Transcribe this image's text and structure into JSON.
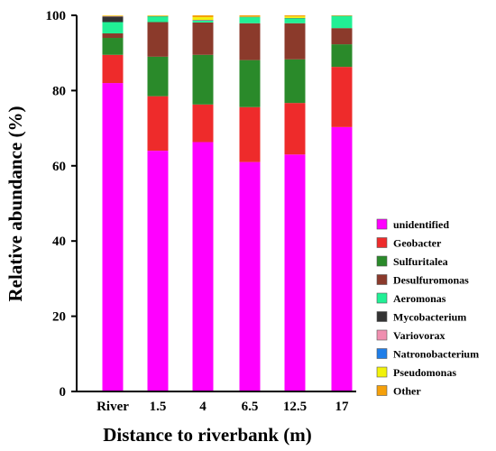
{
  "chart_data": {
    "type": "bar",
    "stacked": true,
    "title": "",
    "xlabel": "Distance to riverbank (m)",
    "ylabel": "Relative abundance (%)",
    "ylim": [
      0,
      100
    ],
    "yticks": [
      0,
      20,
      40,
      60,
      80,
      100
    ],
    "categories": [
      "River",
      "1.5",
      "4",
      "6.5",
      "12.5",
      "17"
    ],
    "legend_position": "right",
    "series": [
      {
        "name": "unidentified",
        "color": "#ff00ff",
        "values": [
          82.0,
          64.0,
          66.3,
          61.0,
          63.0,
          70.3
        ]
      },
      {
        "name": "Geobacter",
        "color": "#ee2b2b",
        "values": [
          7.5,
          14.5,
          10.0,
          14.6,
          13.7,
          16.0
        ]
      },
      {
        "name": "Sulfuritalea",
        "color": "#2a8a2a",
        "values": [
          4.5,
          10.5,
          13.2,
          12.5,
          11.6,
          6.0
        ]
      },
      {
        "name": "Desulfuromonas",
        "color": "#8b3a2b",
        "values": [
          1.2,
          9.2,
          8.6,
          9.8,
          9.6,
          4.3
        ]
      },
      {
        "name": "Aeromonas",
        "color": "#21f095",
        "values": [
          3.0,
          1.5,
          0.5,
          1.6,
          1.3,
          3.2
        ]
      },
      {
        "name": "Mycobacterium",
        "color": "#333333",
        "values": [
          1.5,
          0.1,
          0.1,
          0.1,
          0.1,
          0.1
        ]
      },
      {
        "name": "Variovorax",
        "color": "#f08fb0",
        "values": [
          0.1,
          0.0,
          0.1,
          0.0,
          0.0,
          0.0
        ]
      },
      {
        "name": "Natronobacterium",
        "color": "#1f7ee8",
        "values": [
          0.0,
          0.0,
          0.0,
          0.0,
          0.0,
          0.0
        ]
      },
      {
        "name": "Pseudomonas",
        "color": "#f2f20a",
        "values": [
          0.1,
          0.1,
          0.7,
          0.1,
          0.4,
          0.1
        ]
      },
      {
        "name": "Other",
        "color": "#f5a00a",
        "values": [
          0.1,
          0.1,
          0.5,
          0.3,
          0.3,
          0.0
        ]
      }
    ]
  }
}
